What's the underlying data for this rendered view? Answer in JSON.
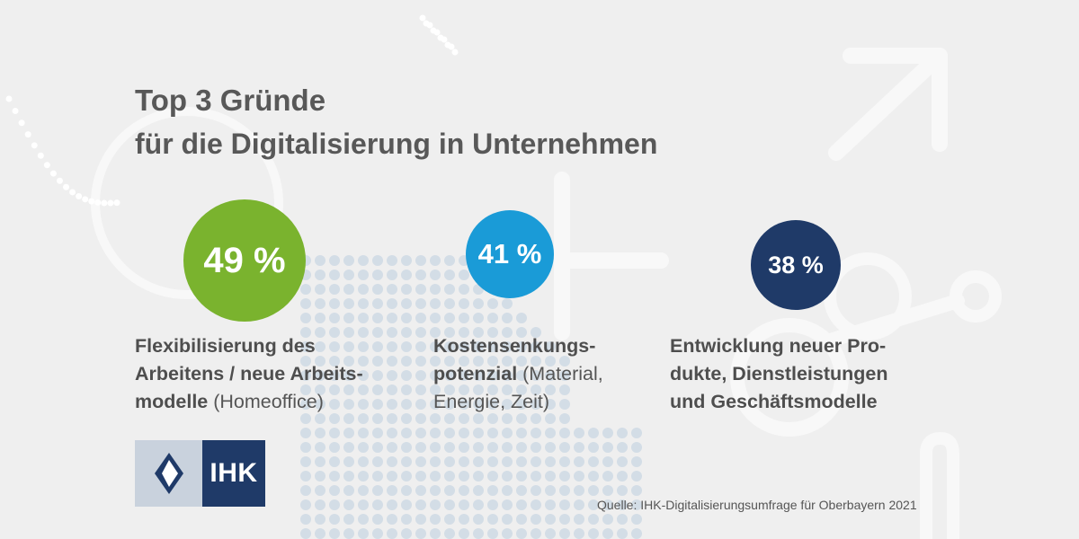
{
  "header": {
    "title": "Top 3 Gründe",
    "subtitle": "für die Digitalisierung in Unternehmen"
  },
  "reasons": [
    {
      "value": "49 %",
      "color": "#7ab32e",
      "label_bold": "Flexibilisierung des Arbeitens / neue Arbeits-modelle",
      "label_line1": "Flexibilisierung des",
      "label_line2": "Arbeitens / neue Arbeits-",
      "label_line3_bold": "modelle",
      "label_line3_regular": " (Homeoffice)"
    },
    {
      "value": "41 %",
      "color": "#1a9bd7",
      "label_line1": "Kostensenkungs-",
      "label_line2_bold": "potenzial",
      "label_line2_regular": " (Material,",
      "label_line3": "Energie, Zeit)"
    },
    {
      "value": "38 %",
      "color": "#1f3a68",
      "label_line1": "Entwicklung neuer Pro-",
      "label_line2": "dukte, Dienstleistungen",
      "label_line3": "und Geschäftsmodelle"
    }
  ],
  "logo": {
    "text": "IHK",
    "colors": {
      "left": "#c9d2dd",
      "right": "#1f3a68"
    }
  },
  "source": "Quelle: IHK-Digitalisierungsumfrage für Oberbayern 2021"
}
